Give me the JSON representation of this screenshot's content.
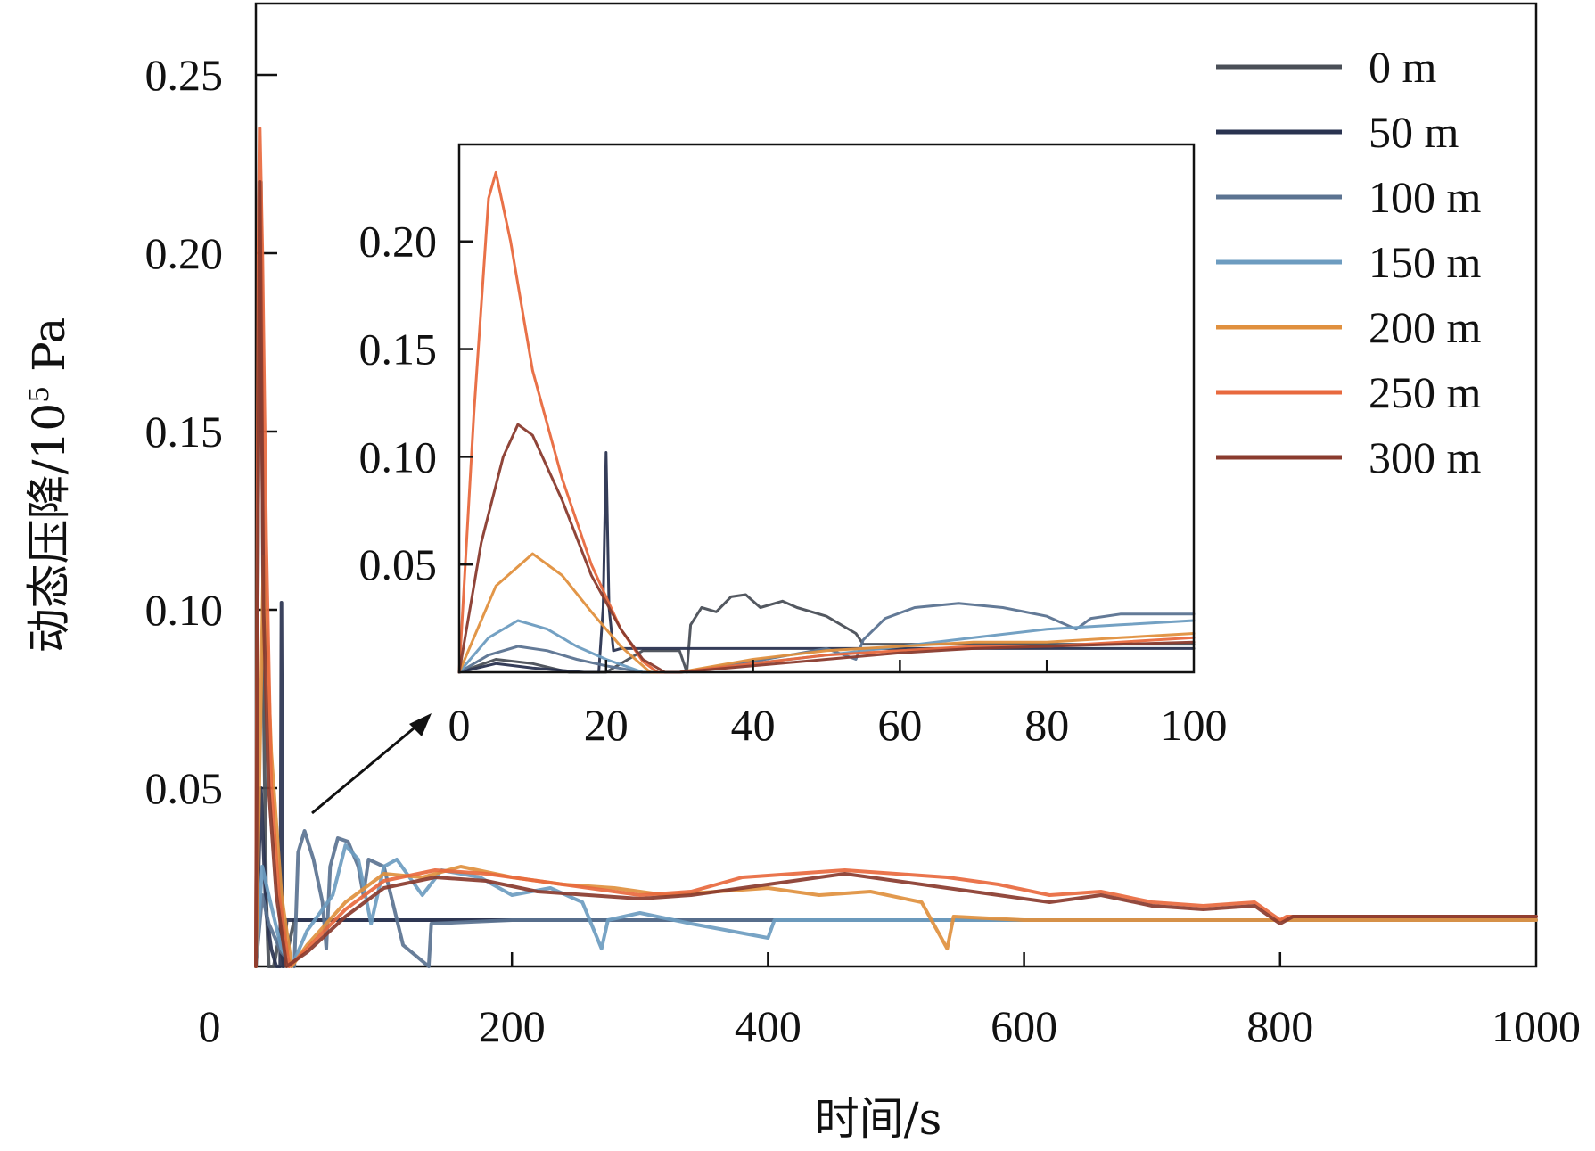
{
  "chart_data": {
    "type": "line",
    "title": "",
    "xlabel": "时间/s",
    "ylabel_main": "动态压降/10",
    "ylabel_sup": "5",
    "ylabel_unit": " Pa",
    "xlim": [
      0,
      1000
    ],
    "ylim": [
      0,
      0.27
    ],
    "xticks": [
      0,
      200,
      400,
      600,
      800,
      1000
    ],
    "xtick_labels": [
      "0",
      "200",
      "400",
      "600",
      "800",
      "1000"
    ],
    "yticks": [
      0.05,
      0.1,
      0.15,
      0.2,
      0.25
    ],
    "ytick_labels": [
      "0.05",
      "0.10",
      "0.15",
      "0.20",
      "0.25"
    ],
    "legend_position": "top-right",
    "series": [
      {
        "name": "0 m",
        "color": "#4a4f57",
        "points": [
          [
            0,
            0.0
          ],
          [
            2,
            0.15
          ],
          [
            4,
            0.22
          ],
          [
            6,
            0.08
          ],
          [
            8,
            0.02
          ],
          [
            10,
            0.0
          ],
          [
            14,
            0.0
          ],
          [
            18,
            0.008
          ],
          [
            22,
            0.0
          ],
          [
            30,
            0.013
          ],
          [
            200,
            0.013
          ],
          [
            600,
            0.013
          ],
          [
            1000,
            0.013
          ]
        ]
      },
      {
        "name": "50 m",
        "color": "#2a3350",
        "points": [
          [
            0,
            0.0
          ],
          [
            4,
            0.05
          ],
          [
            8,
            0.015
          ],
          [
            12,
            0.005
          ],
          [
            16,
            0.0
          ],
          [
            19,
            0.0
          ],
          [
            20,
            0.102
          ],
          [
            21,
            0.0
          ],
          [
            24,
            0.013
          ],
          [
            40,
            0.013
          ],
          [
            200,
            0.013
          ],
          [
            600,
            0.013
          ],
          [
            1000,
            0.013
          ]
        ]
      },
      {
        "name": "100 m",
        "color": "#5b7391",
        "points": [
          [
            0,
            0.0
          ],
          [
            5,
            0.02
          ],
          [
            10,
            0.012
          ],
          [
            20,
            0.004
          ],
          [
            30,
            0.0
          ],
          [
            33,
            0.032
          ],
          [
            38,
            0.038
          ],
          [
            45,
            0.03
          ],
          [
            52,
            0.018
          ],
          [
            55,
            0.005
          ],
          [
            58,
            0.028
          ],
          [
            64,
            0.036
          ],
          [
            72,
            0.035
          ],
          [
            80,
            0.028
          ],
          [
            84,
            0.02
          ],
          [
            88,
            0.03
          ],
          [
            100,
            0.028
          ],
          [
            115,
            0.006
          ],
          [
            135,
            0.0
          ],
          [
            137,
            0.012
          ],
          [
            200,
            0.013
          ],
          [
            1000,
            0.013
          ]
        ]
      },
      {
        "name": "150 m",
        "color": "#6d9cc0",
        "points": [
          [
            0,
            0.0
          ],
          [
            5,
            0.028
          ],
          [
            10,
            0.02
          ],
          [
            20,
            0.005
          ],
          [
            28,
            0.0
          ],
          [
            40,
            0.01
          ],
          [
            60,
            0.02
          ],
          [
            70,
            0.034
          ],
          [
            80,
            0.03
          ],
          [
            90,
            0.012
          ],
          [
            100,
            0.028
          ],
          [
            110,
            0.03
          ],
          [
            130,
            0.02
          ],
          [
            145,
            0.027
          ],
          [
            175,
            0.025
          ],
          [
            200,
            0.02
          ],
          [
            230,
            0.022
          ],
          [
            255,
            0.018
          ],
          [
            270,
            0.005
          ],
          [
            275,
            0.013
          ],
          [
            300,
            0.015
          ],
          [
            340,
            0.012
          ],
          [
            370,
            0.01
          ],
          [
            400,
            0.008
          ],
          [
            405,
            0.013
          ],
          [
            1000,
            0.013
          ]
        ]
      },
      {
        "name": "200 m",
        "color": "#e0903e",
        "points": [
          [
            0,
            0.0
          ],
          [
            6,
            0.115
          ],
          [
            12,
            0.06
          ],
          [
            20,
            0.02
          ],
          [
            28,
            0.0
          ],
          [
            40,
            0.006
          ],
          [
            70,
            0.018
          ],
          [
            100,
            0.026
          ],
          [
            130,
            0.025
          ],
          [
            160,
            0.028
          ],
          [
            200,
            0.025
          ],
          [
            240,
            0.023
          ],
          [
            280,
            0.022
          ],
          [
            320,
            0.02
          ],
          [
            360,
            0.021
          ],
          [
            400,
            0.022
          ],
          [
            440,
            0.02
          ],
          [
            480,
            0.021
          ],
          [
            520,
            0.018
          ],
          [
            540,
            0.005
          ],
          [
            545,
            0.014
          ],
          [
            600,
            0.013
          ],
          [
            1000,
            0.013
          ]
        ]
      },
      {
        "name": "250 m",
        "color": "#e8693e",
        "points": [
          [
            0,
            0.0
          ],
          [
            2,
            0.2
          ],
          [
            3,
            0.235
          ],
          [
            5,
            0.2
          ],
          [
            8,
            0.12
          ],
          [
            12,
            0.05
          ],
          [
            18,
            0.02
          ],
          [
            26,
            0.0
          ],
          [
            40,
            0.005
          ],
          [
            70,
            0.016
          ],
          [
            100,
            0.024
          ],
          [
            140,
            0.027
          ],
          [
            180,
            0.026
          ],
          [
            220,
            0.024
          ],
          [
            260,
            0.022
          ],
          [
            300,
            0.02
          ],
          [
            340,
            0.021
          ],
          [
            380,
            0.025
          ],
          [
            420,
            0.026
          ],
          [
            460,
            0.027
          ],
          [
            500,
            0.026
          ],
          [
            540,
            0.025
          ],
          [
            580,
            0.023
          ],
          [
            620,
            0.02
          ],
          [
            660,
            0.021
          ],
          [
            700,
            0.018
          ],
          [
            740,
            0.017
          ],
          [
            780,
            0.018
          ],
          [
            800,
            0.013
          ],
          [
            805,
            0.014
          ],
          [
            1000,
            0.014
          ]
        ]
      },
      {
        "name": "300 m",
        "color": "#8a3b2e",
        "points": [
          [
            0,
            0.0
          ],
          [
            3,
            0.22
          ],
          [
            6,
            0.1
          ],
          [
            10,
            0.05
          ],
          [
            16,
            0.02
          ],
          [
            24,
            0.0
          ],
          [
            40,
            0.004
          ],
          [
            70,
            0.014
          ],
          [
            100,
            0.022
          ],
          [
            140,
            0.025
          ],
          [
            180,
            0.024
          ],
          [
            220,
            0.021
          ],
          [
            260,
            0.02
          ],
          [
            300,
            0.019
          ],
          [
            340,
            0.02
          ],
          [
            380,
            0.022
          ],
          [
            420,
            0.024
          ],
          [
            460,
            0.026
          ],
          [
            500,
            0.024
          ],
          [
            540,
            0.022
          ],
          [
            580,
            0.02
          ],
          [
            620,
            0.018
          ],
          [
            660,
            0.02
          ],
          [
            700,
            0.017
          ],
          [
            740,
            0.016
          ],
          [
            780,
            0.017
          ],
          [
            800,
            0.012
          ],
          [
            810,
            0.014
          ],
          [
            1000,
            0.014
          ]
        ]
      }
    ],
    "inset": {
      "xlim": [
        0,
        100
      ],
      "ylim": [
        0,
        0.245
      ],
      "xticks": [
        0,
        20,
        40,
        60,
        80,
        100
      ],
      "xtick_labels": [
        "0",
        "20",
        "40",
        "60",
        "80",
        "100"
      ],
      "yticks": [
        0.05,
        0.1,
        0.15,
        0.2
      ],
      "ytick_labels": [
        "0.05",
        "0.10",
        "0.15",
        "0.20"
      ],
      "series": [
        {
          "name": "0 m",
          "color": "#4a4f57",
          "points": [
            [
              0,
              0.0
            ],
            [
              5,
              0.006
            ],
            [
              10,
              0.004
            ],
            [
              15,
              0.0
            ],
            [
              20,
              0.0
            ],
            [
              25,
              0.01
            ],
            [
              30,
              0.01
            ],
            [
              31,
              0.0
            ],
            [
              31.5,
              0.022
            ],
            [
              33,
              0.03
            ],
            [
              35,
              0.028
            ],
            [
              37,
              0.035
            ],
            [
              39,
              0.036
            ],
            [
              41,
              0.03
            ],
            [
              44,
              0.033
            ],
            [
              46,
              0.03
            ],
            [
              50,
              0.026
            ],
            [
              54,
              0.018
            ],
            [
              55,
              0.013
            ],
            [
              100,
              0.013
            ]
          ]
        },
        {
          "name": "50 m",
          "color": "#2a3350",
          "points": [
            [
              0,
              0.0
            ],
            [
              5,
              0.004
            ],
            [
              10,
              0.002
            ],
            [
              17,
              0.0
            ],
            [
              19,
              0.0
            ],
            [
              19.6,
              0.03
            ],
            [
              20,
              0.102
            ],
            [
              20.4,
              0.03
            ],
            [
              21,
              0.01
            ],
            [
              22,
              0.011
            ],
            [
              100,
              0.011
            ]
          ]
        },
        {
          "name": "100 m",
          "color": "#5b7391",
          "points": [
            [
              0,
              0.0
            ],
            [
              4,
              0.008
            ],
            [
              8,
              0.012
            ],
            [
              12,
              0.01
            ],
            [
              16,
              0.006
            ],
            [
              20,
              0.003
            ],
            [
              25,
              0.0
            ],
            [
              30,
              0.0
            ],
            [
              40,
              0.005
            ],
            [
              50,
              0.011
            ],
            [
              54,
              0.006
            ],
            [
              55,
              0.015
            ],
            [
              58,
              0.025
            ],
            [
              62,
              0.03
            ],
            [
              68,
              0.032
            ],
            [
              74,
              0.03
            ],
            [
              80,
              0.026
            ],
            [
              84,
              0.02
            ],
            [
              86,
              0.025
            ],
            [
              90,
              0.027
            ],
            [
              100,
              0.027
            ]
          ]
        },
        {
          "name": "150 m",
          "color": "#6d9cc0",
          "points": [
            [
              0,
              0.0
            ],
            [
              4,
              0.016
            ],
            [
              8,
              0.024
            ],
            [
              12,
              0.02
            ],
            [
              16,
              0.012
            ],
            [
              20,
              0.006
            ],
            [
              25,
              0.0
            ],
            [
              30,
              0.0
            ],
            [
              40,
              0.004
            ],
            [
              50,
              0.008
            ],
            [
              60,
              0.012
            ],
            [
              70,
              0.016
            ],
            [
              80,
              0.02
            ],
            [
              90,
              0.022
            ],
            [
              100,
              0.024
            ]
          ]
        },
        {
          "name": "200 m",
          "color": "#e0903e",
          "points": [
            [
              0,
              0.0
            ],
            [
              5,
              0.04
            ],
            [
              10,
              0.055
            ],
            [
              14,
              0.045
            ],
            [
              18,
              0.028
            ],
            [
              22,
              0.012
            ],
            [
              26,
              0.0
            ],
            [
              30,
              0.0
            ],
            [
              40,
              0.006
            ],
            [
              50,
              0.01
            ],
            [
              60,
              0.012
            ],
            [
              70,
              0.014
            ],
            [
              80,
              0.014
            ],
            [
              90,
              0.016
            ],
            [
              100,
              0.018
            ]
          ]
        },
        {
          "name": "250 m",
          "color": "#e8693e",
          "points": [
            [
              0,
              0.0
            ],
            [
              2,
              0.12
            ],
            [
              4,
              0.22
            ],
            [
              5,
              0.232
            ],
            [
              7,
              0.2
            ],
            [
              10,
              0.14
            ],
            [
              14,
              0.09
            ],
            [
              18,
              0.05
            ],
            [
              22,
              0.02
            ],
            [
              25,
              0.005
            ],
            [
              27,
              0.0
            ],
            [
              30,
              0.0
            ],
            [
              40,
              0.004
            ],
            [
              50,
              0.008
            ],
            [
              60,
              0.01
            ],
            [
              70,
              0.012
            ],
            [
              80,
              0.012
            ],
            [
              90,
              0.014
            ],
            [
              100,
              0.016
            ]
          ]
        },
        {
          "name": "300 m",
          "color": "#8a3b2e",
          "points": [
            [
              0,
              0.0
            ],
            [
              3,
              0.06
            ],
            [
              6,
              0.1
            ],
            [
              8,
              0.115
            ],
            [
              10,
              0.11
            ],
            [
              14,
              0.08
            ],
            [
              18,
              0.045
            ],
            [
              22,
              0.02
            ],
            [
              25,
              0.006
            ],
            [
              28,
              0.0
            ],
            [
              30,
              0.0
            ],
            [
              40,
              0.003
            ],
            [
              50,
              0.006
            ],
            [
              60,
              0.009
            ],
            [
              70,
              0.011
            ],
            [
              80,
              0.012
            ],
            [
              90,
              0.013
            ],
            [
              100,
              0.014
            ]
          ]
        }
      ]
    }
  }
}
